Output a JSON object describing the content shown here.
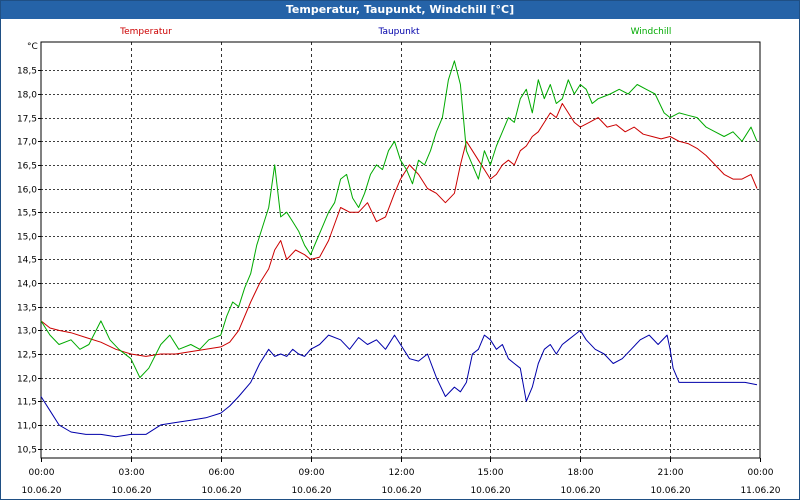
{
  "window": {
    "title": "Temperatur, Taupunkt, Windchill [°C]"
  },
  "chart_data": {
    "type": "line",
    "title": "Temperatur, Taupunkt, Windchill [°C]",
    "ylabel": "°C",
    "xlabel": "",
    "ylim": [
      10.3,
      19.1
    ],
    "xlim": [
      0,
      24
    ],
    "grid": true,
    "yticks": [
      10.5,
      11.0,
      11.5,
      12.0,
      12.5,
      13.0,
      13.5,
      14.0,
      14.5,
      15.0,
      15.5,
      16.0,
      16.5,
      17.0,
      17.5,
      18.0,
      18.5
    ],
    "ytick_labels": [
      "10,5",
      "11,0",
      "11,5",
      "12,0",
      "12,5",
      "13,0",
      "13,5",
      "14,0",
      "14,5",
      "15,0",
      "15,5",
      "16,0",
      "16,5",
      "17,0",
      "17,5",
      "18,0",
      "18,5"
    ],
    "xticks": [
      0,
      3,
      6,
      9,
      12,
      15,
      18,
      21,
      24
    ],
    "xtick_time_labels": [
      "00:00",
      "03:00",
      "06:00",
      "09:00",
      "12:00",
      "15:00",
      "18:00",
      "21:00",
      "00:00"
    ],
    "xtick_date_labels": [
      "10.06.20",
      "10.06.20",
      "10.06.20",
      "10.06.20",
      "10.06.20",
      "10.06.20",
      "10.06.20",
      "10.06.20",
      "11.06.20"
    ],
    "series": [
      {
        "name": "Temperatur",
        "color": "#cc0000",
        "x": [
          0,
          0.3,
          0.6,
          1,
          1.5,
          2,
          2.5,
          3,
          3.5,
          4,
          4.5,
          5,
          5.5,
          6,
          6.3,
          6.6,
          7,
          7.3,
          7.6,
          7.8,
          8,
          8.2,
          8.5,
          8.8,
          9,
          9.3,
          9.6,
          10,
          10.3,
          10.6,
          10.9,
          11.2,
          11.5,
          11.8,
          12,
          12.3,
          12.6,
          12.9,
          13.2,
          13.5,
          13.8,
          14,
          14.2,
          14.4,
          14.6,
          14.8,
          15,
          15.2,
          15.4,
          15.6,
          15.8,
          16,
          16.2,
          16.4,
          16.6,
          16.8,
          17,
          17.2,
          17.4,
          17.6,
          17.8,
          18,
          18.3,
          18.6,
          18.9,
          19.2,
          19.5,
          19.8,
          20.1,
          20.4,
          20.7,
          21,
          21.3,
          21.6,
          21.9,
          22.2,
          22.5,
          22.8,
          23.1,
          23.4,
          23.7,
          23.9
        ],
        "values": [
          13.2,
          13.05,
          13.0,
          12.95,
          12.85,
          12.75,
          12.6,
          12.5,
          12.45,
          12.5,
          12.5,
          12.55,
          12.6,
          12.65,
          12.75,
          13.0,
          13.6,
          14.0,
          14.3,
          14.7,
          14.9,
          14.5,
          14.7,
          14.6,
          14.5,
          14.55,
          14.9,
          15.6,
          15.5,
          15.5,
          15.7,
          15.3,
          15.4,
          15.9,
          16.2,
          16.5,
          16.3,
          16.0,
          15.9,
          15.7,
          15.9,
          16.5,
          17.0,
          16.8,
          16.6,
          16.4,
          16.2,
          16.3,
          16.5,
          16.6,
          16.5,
          16.8,
          16.9,
          17.1,
          17.2,
          17.4,
          17.6,
          17.5,
          17.8,
          17.6,
          17.4,
          17.3,
          17.4,
          17.5,
          17.3,
          17.35,
          17.2,
          17.3,
          17.15,
          17.1,
          17.05,
          17.1,
          17.0,
          16.95,
          16.85,
          16.7,
          16.5,
          16.3,
          16.2,
          16.2,
          16.3,
          16.0
        ]
      },
      {
        "name": "Taupunkt",
        "color": "#0000aa",
        "x": [
          0,
          0.3,
          0.6,
          1,
          1.5,
          2,
          2.5,
          3,
          3.5,
          4,
          4.5,
          5,
          5.5,
          6,
          6.3,
          6.6,
          7,
          7.3,
          7.6,
          7.8,
          8,
          8.2,
          8.4,
          8.6,
          8.8,
          9,
          9.3,
          9.6,
          10,
          10.3,
          10.6,
          10.9,
          11.2,
          11.5,
          11.8,
          12,
          12.3,
          12.6,
          12.9,
          13.2,
          13.5,
          13.8,
          14,
          14.2,
          14.4,
          14.6,
          14.8,
          15,
          15.2,
          15.4,
          15.6,
          15.8,
          16,
          16.2,
          16.4,
          16.6,
          16.8,
          17,
          17.2,
          17.4,
          17.6,
          17.8,
          18,
          18.2,
          18.5,
          18.8,
          19.1,
          19.4,
          19.7,
          20,
          20.3,
          20.6,
          20.9,
          21,
          21.1,
          21.3,
          21.6,
          22,
          22.5,
          23,
          23.5,
          23.9
        ],
        "values": [
          11.6,
          11.3,
          11.0,
          10.85,
          10.8,
          10.8,
          10.75,
          10.8,
          10.8,
          11.0,
          11.05,
          11.1,
          11.15,
          11.25,
          11.4,
          11.6,
          11.9,
          12.3,
          12.6,
          12.45,
          12.5,
          12.45,
          12.6,
          12.5,
          12.45,
          12.6,
          12.7,
          12.9,
          12.8,
          12.6,
          12.85,
          12.7,
          12.8,
          12.6,
          12.9,
          12.7,
          12.4,
          12.35,
          12.5,
          12.0,
          11.6,
          11.8,
          11.7,
          11.9,
          12.5,
          12.6,
          12.9,
          12.8,
          12.6,
          12.7,
          12.4,
          12.3,
          12.2,
          11.5,
          11.8,
          12.3,
          12.6,
          12.7,
          12.5,
          12.7,
          12.8,
          12.9,
          13.0,
          12.8,
          12.6,
          12.5,
          12.3,
          12.4,
          12.6,
          12.8,
          12.9,
          12.7,
          12.9,
          12.6,
          12.2,
          11.9,
          11.9,
          11.9,
          11.9,
          11.9,
          11.9,
          11.85
        ]
      },
      {
        "name": "Windchill",
        "color": "#00aa00",
        "x": [
          0,
          0.3,
          0.6,
          1,
          1.3,
          1.6,
          2,
          2.3,
          2.6,
          3,
          3.3,
          3.6,
          4,
          4.3,
          4.6,
          5,
          5.3,
          5.6,
          6,
          6.2,
          6.4,
          6.6,
          6.8,
          7,
          7.2,
          7.4,
          7.6,
          7.8,
          8,
          8.2,
          8.4,
          8.6,
          8.8,
          9,
          9.2,
          9.4,
          9.6,
          9.8,
          10,
          10.2,
          10.4,
          10.6,
          10.8,
          11,
          11.2,
          11.4,
          11.6,
          11.8,
          12,
          12.2,
          12.4,
          12.6,
          12.8,
          13,
          13.2,
          13.4,
          13.6,
          13.8,
          14,
          14.2,
          14.4,
          14.6,
          14.8,
          15,
          15.2,
          15.4,
          15.6,
          15.8,
          16,
          16.2,
          16.4,
          16.6,
          16.8,
          17,
          17.2,
          17.4,
          17.6,
          17.8,
          18,
          18.2,
          18.4,
          18.6,
          18.8,
          19,
          19.3,
          19.6,
          19.9,
          20.2,
          20.5,
          20.8,
          21,
          21.3,
          21.6,
          21.9,
          22.2,
          22.5,
          22.8,
          23.1,
          23.4,
          23.7,
          23.9
        ],
        "values": [
          13.2,
          12.9,
          12.7,
          12.8,
          12.6,
          12.7,
          13.2,
          12.8,
          12.6,
          12.4,
          12.0,
          12.2,
          12.7,
          12.9,
          12.6,
          12.7,
          12.6,
          12.8,
          12.9,
          13.3,
          13.6,
          13.5,
          13.9,
          14.2,
          14.8,
          15.2,
          15.6,
          16.5,
          15.4,
          15.5,
          15.3,
          15.1,
          14.8,
          14.6,
          14.9,
          15.2,
          15.5,
          15.7,
          16.2,
          16.3,
          15.8,
          15.6,
          15.9,
          16.3,
          16.5,
          16.4,
          16.8,
          17.0,
          16.6,
          16.4,
          16.1,
          16.6,
          16.5,
          16.8,
          17.2,
          17.5,
          18.3,
          18.7,
          18.2,
          16.8,
          16.5,
          16.2,
          16.8,
          16.5,
          16.9,
          17.2,
          17.5,
          17.4,
          17.9,
          18.1,
          17.6,
          18.3,
          17.9,
          18.2,
          17.8,
          17.9,
          18.3,
          18.0,
          18.2,
          18.1,
          17.8,
          17.9,
          17.95,
          18.0,
          18.1,
          18.0,
          18.2,
          18.1,
          18.0,
          17.6,
          17.5,
          17.6,
          17.55,
          17.5,
          17.3,
          17.2,
          17.1,
          17.2,
          17.0,
          17.3,
          17.0
        ]
      }
    ]
  }
}
